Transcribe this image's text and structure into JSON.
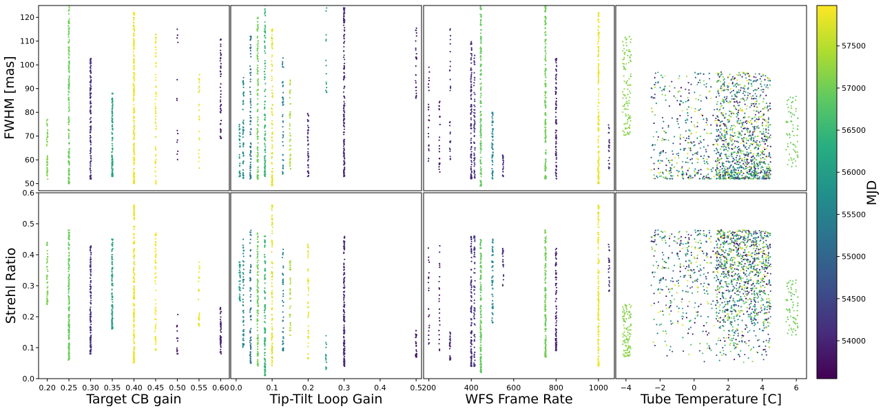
{
  "figure": {
    "ylabel_top": "FWHM [mas]",
    "ylabel_bottom": "Strehl Ratio",
    "colorbar_label": "MJD",
    "colormap": "viridis",
    "colorbar_range": [
      53550,
      57980
    ],
    "colorbar_ticks": [
      "54000",
      "54500",
      "55000",
      "55500",
      "56000",
      "56500",
      "57000",
      "57500"
    ],
    "colorbar_tick_values": [
      54000,
      54500,
      55000,
      55500,
      56000,
      56500,
      57000,
      57500
    ],
    "top_yticks": [
      "50",
      "60",
      "70",
      "80",
      "90",
      "100",
      "110",
      "120"
    ],
    "top_yticks_values": [
      50,
      60,
      70,
      80,
      90,
      100,
      110,
      120
    ],
    "bottom_yticks": [
      "0.0",
      "0.1",
      "0.2",
      "0.3",
      "0.4",
      "0.5",
      "0.6"
    ],
    "bottom_yticks_values": [
      0,
      0.1,
      0.2,
      0.3,
      0.4,
      0.5,
      0.6
    ],
    "top_ylim": [
      47,
      125
    ],
    "bottom_ylim": [
      0,
      0.6
    ]
  },
  "chart_data": [
    {
      "type": "scatter",
      "xlabel": "Target CB gain",
      "ylabel": "FWHM [mas]",
      "xlim": [
        0.18,
        0.62
      ],
      "xticks": [
        "0.20",
        "0.25",
        "0.30",
        "0.35",
        "0.40",
        "0.45",
        "0.50",
        "0.55",
        "0.60"
      ],
      "xticks_values": [
        0.2,
        0.25,
        0.3,
        0.35,
        0.4,
        0.45,
        0.5,
        0.55,
        0.6
      ],
      "groups": [
        {
          "x": 0.2,
          "mjd": 57100,
          "ymin": 51,
          "ymax": 77,
          "n": 40
        },
        {
          "x": 0.25,
          "mjd": 56950,
          "ymin": 50,
          "ymax": 125,
          "n": 150
        },
        {
          "x": 0.3,
          "mjd": 54100,
          "ymin": 52,
          "ymax": 103,
          "n": 110
        },
        {
          "x": 0.35,
          "mjd": 56100,
          "ymin": 53,
          "ymax": 88,
          "n": 90
        },
        {
          "x": 0.4,
          "mjd": 57850,
          "ymin": 50,
          "ymax": 122,
          "n": 160
        },
        {
          "x": 0.45,
          "mjd": 57900,
          "ymin": 49,
          "ymax": 113,
          "n": 60
        },
        {
          "x": 0.5,
          "mjd": 53800,
          "ymin": 58,
          "ymax": 116,
          "n": 12
        },
        {
          "x": 0.55,
          "mjd": 57800,
          "ymin": 56,
          "ymax": 96,
          "n": 25
        },
        {
          "x": 0.6,
          "mjd": 53850,
          "ymin": 69,
          "ymax": 111,
          "n": 45
        }
      ]
    },
    {
      "type": "scatter",
      "xlabel": "Tip-Tilt Loop Gain",
      "ylabel": "FWHM [mas]",
      "xlim": [
        -0.015,
        0.515
      ],
      "xticks": [
        "0.0",
        "0.1",
        "0.2",
        "0.3",
        "0.4",
        "0.5"
      ],
      "xticks_values": [
        0,
        0.1,
        0.2,
        0.3,
        0.4,
        0.5
      ],
      "groups": [
        {
          "x": 0.01,
          "mjd": 56000,
          "ymin": 53,
          "ymax": 75,
          "n": 30
        },
        {
          "x": 0.02,
          "mjd": 55600,
          "ymin": 52,
          "ymax": 95,
          "n": 50
        },
        {
          "x": 0.04,
          "mjd": 55200,
          "ymin": 52,
          "ymax": 112,
          "n": 70
        },
        {
          "x": 0.06,
          "mjd": 57000,
          "ymin": 52,
          "ymax": 120,
          "n": 100
        },
        {
          "x": 0.08,
          "mjd": 56500,
          "ymin": 53,
          "ymax": 125,
          "n": 100
        },
        {
          "x": 0.1,
          "mjd": 57800,
          "ymin": 49,
          "ymax": 115,
          "n": 90
        },
        {
          "x": 0.13,
          "mjd": 55500,
          "ymin": 54,
          "ymax": 103,
          "n": 40
        },
        {
          "x": 0.15,
          "mjd": 57400,
          "ymin": 56,
          "ymax": 94,
          "n": 40
        },
        {
          "x": 0.2,
          "mjd": 54100,
          "ymin": 53,
          "ymax": 80,
          "n": 40
        },
        {
          "x": 0.25,
          "mjd": 56000,
          "ymin": 88,
          "ymax": 124,
          "n": 12
        },
        {
          "x": 0.3,
          "mjd": 54050,
          "ymin": 53,
          "ymax": 124,
          "n": 140
        },
        {
          "x": 0.5,
          "mjd": 53800,
          "ymin": 86,
          "ymax": 116,
          "n": 25
        }
      ]
    },
    {
      "type": "scatter",
      "xlabel": "WFS Frame Rate",
      "ylabel": "FWHM [mas]",
      "xlim": [
        175,
        1075
      ],
      "xticks": [
        "200",
        "400",
        "600",
        "800",
        "1000"
      ],
      "xticks_values": [
        200,
        400,
        600,
        800,
        1000
      ],
      "groups": [
        {
          "x": 200,
          "mjd": 53800,
          "ymin": 56,
          "ymax": 100,
          "n": 20
        },
        {
          "x": 250,
          "mjd": 53800,
          "ymin": 54,
          "ymax": 85,
          "n": 20
        },
        {
          "x": 300,
          "mjd": 54050,
          "ymin": 60,
          "ymax": 116,
          "n": 25
        },
        {
          "x": 400,
          "mjd": 54050,
          "ymin": 52,
          "ymax": 110,
          "n": 90
        },
        {
          "x": 415,
          "mjd": 54300,
          "ymin": 52,
          "ymax": 104,
          "n": 60
        },
        {
          "x": 445,
          "mjd": 56900,
          "ymin": 49,
          "ymax": 125,
          "n": 140
        },
        {
          "x": 500,
          "mjd": 55700,
          "ymin": 52,
          "ymax": 80,
          "n": 50
        },
        {
          "x": 550,
          "mjd": 54100,
          "ymin": 53,
          "ymax": 62,
          "n": 20
        },
        {
          "x": 750,
          "mjd": 57000,
          "ymin": 52,
          "ymax": 125,
          "n": 150
        },
        {
          "x": 800,
          "mjd": 54000,
          "ymin": 52,
          "ymax": 103,
          "n": 80
        },
        {
          "x": 1000,
          "mjd": 57850,
          "ymin": 50,
          "ymax": 122,
          "n": 140
        },
        {
          "x": 1050,
          "mjd": 54050,
          "ymin": 56,
          "ymax": 75,
          "n": 20
        }
      ]
    },
    {
      "type": "scatter",
      "xlabel": "Tube Temperature [C]",
      "ylabel": "FWHM [mas]",
      "xlim": [
        -4.6,
        6.6
      ],
      "xticks": [
        "−4",
        "−2",
        "0",
        "2",
        "4",
        "6"
      ],
      "xticks_values": [
        -4,
        -2,
        0,
        2,
        4,
        6
      ],
      "note": "dense cloud of ~3000 points spread between -4.3 and 6 C, FWHM mostly 52-90 mas"
    },
    {
      "type": "scatter",
      "xlabel": "Target CB gain",
      "ylabel": "Strehl Ratio",
      "xlim": [
        0.18,
        0.62
      ],
      "xticks": [
        "0.20",
        "0.25",
        "0.30",
        "0.35",
        "0.40",
        "0.45",
        "0.50",
        "0.55",
        "0.60"
      ],
      "xticks_values": [
        0.2,
        0.25,
        0.3,
        0.35,
        0.4,
        0.45,
        0.5,
        0.55,
        0.6
      ],
      "groups": [
        {
          "x": 0.2,
          "mjd": 57100,
          "ymin": 0.24,
          "ymax": 0.44,
          "n": 40
        },
        {
          "x": 0.25,
          "mjd": 56950,
          "ymin": 0.06,
          "ymax": 0.48,
          "n": 150
        },
        {
          "x": 0.3,
          "mjd": 54100,
          "ymin": 0.08,
          "ymax": 0.43,
          "n": 110
        },
        {
          "x": 0.35,
          "mjd": 56100,
          "ymin": 0.16,
          "ymax": 0.45,
          "n": 90
        },
        {
          "x": 0.4,
          "mjd": 57850,
          "ymin": 0.05,
          "ymax": 0.56,
          "n": 160
        },
        {
          "x": 0.45,
          "mjd": 57900,
          "ymin": 0.09,
          "ymax": 0.47,
          "n": 60
        },
        {
          "x": 0.5,
          "mjd": 53800,
          "ymin": 0.08,
          "ymax": 0.33,
          "n": 12
        },
        {
          "x": 0.55,
          "mjd": 57800,
          "ymin": 0.17,
          "ymax": 0.4,
          "n": 25
        },
        {
          "x": 0.6,
          "mjd": 53850,
          "ymin": 0.08,
          "ymax": 0.23,
          "n": 45
        }
      ]
    },
    {
      "type": "scatter",
      "xlabel": "Tip-Tilt Loop Gain",
      "ylabel": "Strehl Ratio",
      "xlim": [
        -0.015,
        0.515
      ],
      "xticks": [
        "0.0",
        "0.1",
        "0.2",
        "0.3",
        "0.4",
        "0.5"
      ],
      "xticks_values": [
        0,
        0.1,
        0.2,
        0.3,
        0.4,
        0.5
      ],
      "groups": [
        {
          "x": 0.01,
          "mjd": 56000,
          "ymin": 0.25,
          "ymax": 0.38,
          "n": 30
        },
        {
          "x": 0.02,
          "mjd": 55600,
          "ymin": 0.1,
          "ymax": 0.45,
          "n": 50
        },
        {
          "x": 0.04,
          "mjd": 55200,
          "ymin": 0.05,
          "ymax": 0.48,
          "n": 70
        },
        {
          "x": 0.06,
          "mjd": 57000,
          "ymin": 0.04,
          "ymax": 0.47,
          "n": 100
        },
        {
          "x": 0.08,
          "mjd": 56500,
          "ymin": 0.01,
          "ymax": 0.46,
          "n": 100
        },
        {
          "x": 0.1,
          "mjd": 57800,
          "ymin": 0.04,
          "ymax": 0.56,
          "n": 90
        },
        {
          "x": 0.13,
          "mjd": 55500,
          "ymin": 0.09,
          "ymax": 0.42,
          "n": 40
        },
        {
          "x": 0.15,
          "mjd": 57400,
          "ymin": 0.14,
          "ymax": 0.38,
          "n": 40
        },
        {
          "x": 0.2,
          "mjd": 57800,
          "ymin": 0.06,
          "ymax": 0.44,
          "n": 40
        },
        {
          "x": 0.25,
          "mjd": 56000,
          "ymin": 0.03,
          "ymax": 0.14,
          "n": 12
        },
        {
          "x": 0.3,
          "mjd": 54050,
          "ymin": 0.04,
          "ymax": 0.46,
          "n": 140
        },
        {
          "x": 0.5,
          "mjd": 53800,
          "ymin": 0.07,
          "ymax": 0.16,
          "n": 25
        }
      ]
    },
    {
      "type": "scatter",
      "xlabel": "WFS Frame Rate",
      "ylabel": "Strehl Ratio",
      "xlim": [
        175,
        1075
      ],
      "xticks": [
        "200",
        "400",
        "600",
        "800",
        "1000"
      ],
      "xticks_values": [
        200,
        400,
        600,
        800,
        1000
      ],
      "groups": [
        {
          "x": 200,
          "mjd": 53800,
          "ymin": 0.11,
          "ymax": 0.43,
          "n": 20
        },
        {
          "x": 250,
          "mjd": 53800,
          "ymin": 0.09,
          "ymax": 0.43,
          "n": 20
        },
        {
          "x": 300,
          "mjd": 54050,
          "ymin": 0.06,
          "ymax": 0.15,
          "n": 25
        },
        {
          "x": 400,
          "mjd": 54050,
          "ymin": 0.04,
          "ymax": 0.46,
          "n": 90
        },
        {
          "x": 415,
          "mjd": 54300,
          "ymin": 0.04,
          "ymax": 0.46,
          "n": 60
        },
        {
          "x": 445,
          "mjd": 56900,
          "ymin": 0.02,
          "ymax": 0.45,
          "n": 140
        },
        {
          "x": 500,
          "mjd": 55700,
          "ymin": 0.18,
          "ymax": 0.45,
          "n": 50
        },
        {
          "x": 550,
          "mjd": 54100,
          "ymin": 0.3,
          "ymax": 0.42,
          "n": 20
        },
        {
          "x": 750,
          "mjd": 57000,
          "ymin": 0.07,
          "ymax": 0.48,
          "n": 150
        },
        {
          "x": 800,
          "mjd": 54000,
          "ymin": 0.09,
          "ymax": 0.42,
          "n": 80
        },
        {
          "x": 1000,
          "mjd": 57850,
          "ymin": 0.04,
          "ymax": 0.56,
          "n": 140
        },
        {
          "x": 1050,
          "mjd": 54050,
          "ymin": 0.28,
          "ymax": 0.44,
          "n": 20
        }
      ]
    },
    {
      "type": "scatter",
      "xlabel": "Tube Temperature [C]",
      "ylabel": "Strehl Ratio",
      "xlim": [
        -4.6,
        6.6
      ],
      "xticks": [
        "−4",
        "−2",
        "0",
        "2",
        "4",
        "6"
      ],
      "xticks_values": [
        -4,
        -2,
        0,
        2,
        4,
        6
      ],
      "note": "dense cloud of ~3000 points spread between -4.3 and 6 C, Strehl mostly 0.05-0.48"
    }
  ]
}
